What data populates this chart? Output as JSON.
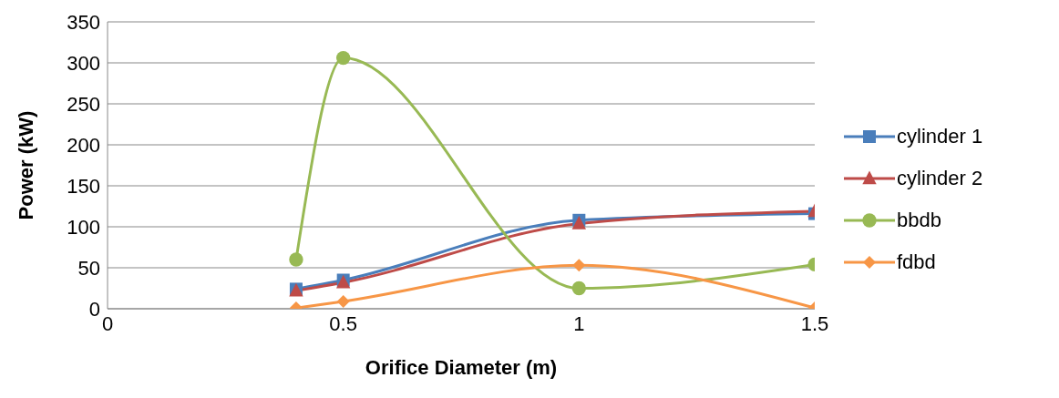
{
  "chart_data": {
    "type": "line",
    "xlabel": "Orifice Diameter (m)",
    "ylabel": "Power (kW)",
    "x": [
      0.4,
      0.5,
      1,
      1.5
    ],
    "series": [
      {
        "name": "cylinder 1",
        "color": "#4a7ebb",
        "marker": "square",
        "values": [
          24,
          35,
          108,
          116
        ]
      },
      {
        "name": "cylinder 2",
        "color": "#be4b48",
        "marker": "triangle",
        "values": [
          22,
          32,
          104,
          119
        ]
      },
      {
        "name": "bbdb",
        "color": "#98b954",
        "marker": "circle",
        "values": [
          60,
          306,
          25,
          54
        ]
      },
      {
        "name": "fdbd",
        "color": "#f79646",
        "marker": "diamond",
        "values": [
          1,
          9,
          53,
          1
        ]
      }
    ],
    "xlim": [
      0,
      1.5
    ],
    "xticks": [
      0,
      0.5,
      1,
      1.5
    ],
    "ylim": [
      0,
      350
    ],
    "yticks": [
      0,
      50,
      100,
      150,
      200,
      250,
      300,
      350
    ],
    "grid": "y",
    "legend": "right",
    "line_style": "solid"
  }
}
